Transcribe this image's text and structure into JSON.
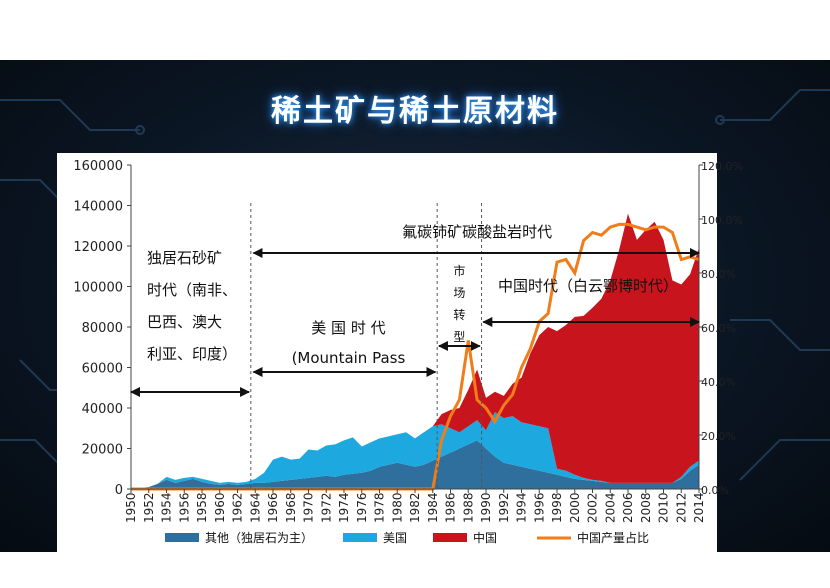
{
  "slide": {
    "title": "稀土矿与稀土原材料",
    "background_color": "#0b1624",
    "accent_color": "#3aa0ff"
  },
  "chart_data": {
    "type": "area",
    "title": "",
    "xlabel": "",
    "ylabel": "",
    "ylim": [
      0,
      160000
    ],
    "y2lim": [
      0,
      1.2
    ],
    "x_tick_labels": [
      "1950",
      "1952",
      "1954",
      "1956",
      "1958",
      "1960",
      "1962",
      "1964",
      "1966",
      "1968",
      "1970",
      "1972",
      "1974",
      "1976",
      "1978",
      "1980",
      "1982",
      "1984",
      "1986",
      "1988",
      "1990",
      "1992",
      "1994",
      "1996",
      "1998",
      "2000",
      "2002",
      "2004",
      "2006",
      "2008",
      "2010",
      "2012",
      "2014"
    ],
    "y_tick_labels": [
      "0",
      "20000",
      "40000",
      "60000",
      "80000",
      "100000",
      "120000",
      "140000",
      "160000"
    ],
    "y2_tick_labels": [
      "0.0%",
      "20.0%",
      "40.0%",
      "60.0%",
      "80.0%",
      "100.0%",
      "120.0%"
    ],
    "x": [
      1950,
      1951,
      1952,
      1953,
      1954,
      1955,
      1956,
      1957,
      1958,
      1959,
      1960,
      1961,
      1962,
      1963,
      1964,
      1965,
      1966,
      1967,
      1968,
      1969,
      1970,
      1971,
      1972,
      1973,
      1974,
      1975,
      1976,
      1977,
      1978,
      1979,
      1980,
      1981,
      1982,
      1983,
      1984,
      1985,
      1986,
      1987,
      1988,
      1989,
      1990,
      1991,
      1992,
      1993,
      1994,
      1995,
      1996,
      1997,
      1998,
      1999,
      2000,
      2001,
      2002,
      2003,
      2004,
      2005,
      2006,
      2007,
      2008,
      2009,
      2010,
      2011,
      2012,
      2013,
      2014
    ],
    "series": [
      {
        "name": "其他（独居石为主）",
        "type": "area",
        "color": "#2e6f9e",
        "values": [
          0,
          500,
          1000,
          2500,
          4500,
          3000,
          4000,
          5000,
          3500,
          2500,
          2000,
          2500,
          2000,
          2500,
          3000,
          3000,
          3500,
          4000,
          4500,
          5000,
          5500,
          6000,
          6500,
          6000,
          7000,
          7500,
          8000,
          9000,
          11000,
          12000,
          13000,
          12000,
          11000,
          12000,
          14000,
          16000,
          18000,
          20000,
          22000,
          24000,
          20000,
          16000,
          13000,
          12000,
          11000,
          10000,
          9000,
          8000,
          7000,
          6000,
          5000,
          4500,
          4000,
          3500,
          3000,
          3000,
          3000,
          3000,
          3000,
          3000,
          3000,
          3000,
          5000,
          9000,
          12000
        ]
      },
      {
        "name": "美国",
        "type": "area",
        "color": "#1ea8e0",
        "values": [
          0,
          0,
          0,
          0,
          1500,
          1500,
          1500,
          1000,
          1500,
          1500,
          1000,
          1000,
          1000,
          1000,
          2000,
          5000,
          11000,
          12000,
          10000,
          10000,
          14000,
          13000,
          15000,
          16000,
          17000,
          18000,
          13000,
          14000,
          14000,
          14000,
          14000,
          16000,
          14000,
          16000,
          17000,
          16000,
          12000,
          8000,
          9000,
          10000,
          9000,
          22000,
          22000,
          24000,
          22000,
          22000,
          22000,
          22000,
          3000,
          3000,
          2000,
          1000,
          500,
          500,
          0,
          0,
          0,
          0,
          0,
          0,
          0,
          0,
          1000,
          2000,
          2000
        ]
      },
      {
        "name": "中国",
        "type": "area",
        "color": "#c8141c",
        "values": [
          0,
          0,
          0,
          0,
          0,
          0,
          0,
          0,
          0,
          0,
          0,
          0,
          0,
          0,
          0,
          0,
          0,
          0,
          0,
          0,
          0,
          0,
          0,
          0,
          0,
          0,
          0,
          0,
          0,
          0,
          0,
          0,
          0,
          0,
          0,
          5000,
          9000,
          12000,
          18000,
          25000,
          16000,
          10000,
          11000,
          16000,
          22000,
          35000,
          45000,
          50000,
          68000,
          72000,
          78000,
          80000,
          85000,
          90000,
          100000,
          115000,
          133000,
          120000,
          125000,
          129000,
          120000,
          100000,
          95000,
          95000,
          105000
        ]
      },
      {
        "name": "中国产量占比",
        "type": "line",
        "axis": "right",
        "color": "#f07d1a",
        "values": [
          0,
          0,
          0,
          0,
          0,
          0,
          0,
          0,
          0,
          0,
          0,
          0,
          0,
          0,
          0,
          0,
          0,
          0,
          0,
          0,
          0,
          0,
          0,
          0,
          0,
          0,
          0,
          0,
          0,
          0,
          0,
          0,
          0,
          0,
          0,
          0.18,
          0.27,
          0.33,
          0.55,
          0.33,
          0.3,
          0.25,
          0.31,
          0.35,
          0.45,
          0.52,
          0.62,
          0.65,
          0.84,
          0.85,
          0.8,
          0.92,
          0.95,
          0.94,
          0.97,
          0.98,
          0.98,
          0.97,
          0.96,
          0.97,
          0.97,
          0.95,
          0.85,
          0.86,
          0.85
        ]
      }
    ],
    "annotations": [
      {
        "text": "氟碳铈矿碳酸盐岩时代"
      },
      {
        "text": "独居石砂矿"
      },
      {
        "text": "时代（南非、"
      },
      {
        "text": "巴西、澳大"
      },
      {
        "text": "利亚、印度）"
      },
      {
        "text": "美 国 时 代"
      },
      {
        "text": "(Mountain Pass"
      },
      {
        "text": "市"
      },
      {
        "text": "场"
      },
      {
        "text": "转"
      },
      {
        "text": "型"
      },
      {
        "text": "中国时代（白云鄂博时代）"
      }
    ],
    "legend_position": "bottom",
    "grid": false
  }
}
